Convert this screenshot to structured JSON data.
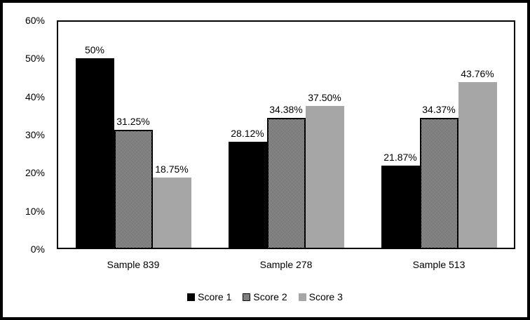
{
  "chart_data": {
    "type": "bar",
    "title": "",
    "xlabel": "",
    "ylabel": "",
    "categories": [
      "Sample 839",
      "Sample 278",
      "Sample 513"
    ],
    "series": [
      {
        "name": "Score 1",
        "style": "solid-black",
        "values": [
          50,
          28.12,
          21.87
        ],
        "labels": [
          "50%",
          "28.12%",
          "21.87%"
        ]
      },
      {
        "name": "Score 2",
        "style": "checker",
        "values": [
          31.25,
          34.38,
          34.37
        ],
        "labels": [
          "31.25%",
          "34.38%",
          "34.37%"
        ]
      },
      {
        "name": "Score 3",
        "style": "solid-gray",
        "values": [
          18.75,
          37.5,
          43.76
        ],
        "labels": [
          "18.75%",
          "37.50%",
          "43.76%"
        ]
      }
    ],
    "y_axis": {
      "min": 0,
      "max": 60,
      "tick_labels": [
        "0%",
        "10%",
        "20%",
        "30%",
        "40%",
        "50%",
        "60%"
      ]
    },
    "legend": {
      "position": "bottom-center",
      "entries": [
        "Score 1",
        "Score 2",
        "Score 3"
      ]
    },
    "grid": false,
    "colors": {
      "bar_black": "#000000",
      "bar_gray": "#a6a6a6",
      "checker_fg": "#000000",
      "checker_bg": "#ffffff",
      "border": "#000000",
      "background": "#ffffff"
    }
  }
}
